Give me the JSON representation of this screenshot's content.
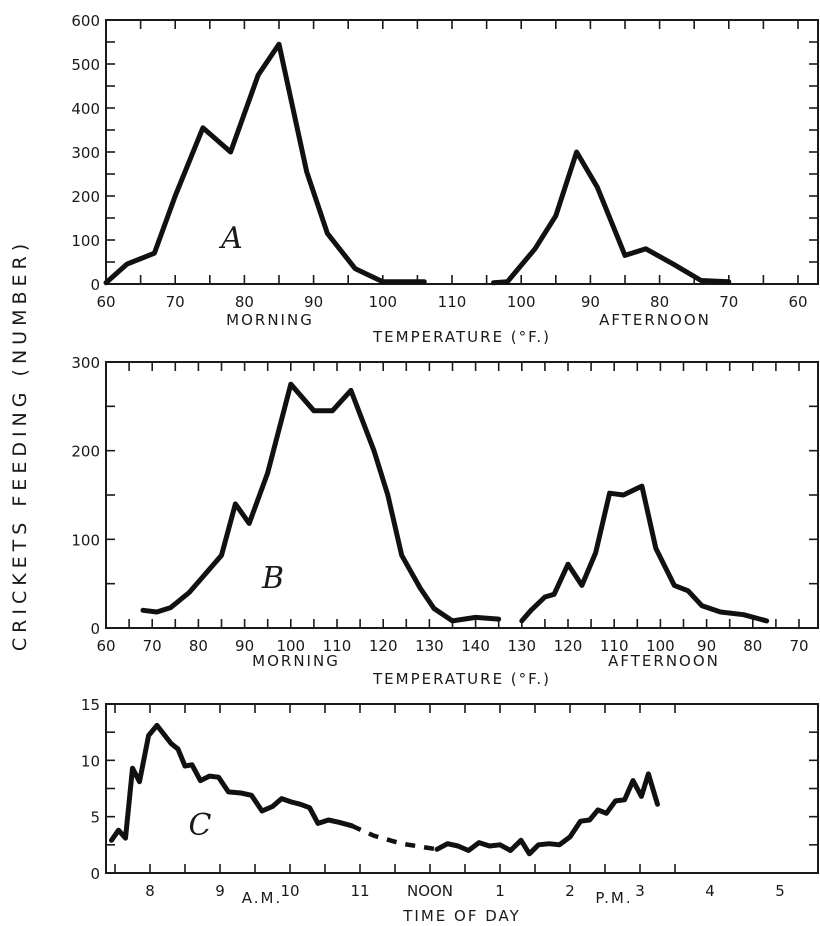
{
  "y_axis_label": "CRICKETS FEEDING (NUMBER)",
  "chart_data": [
    {
      "type": "line",
      "panel": "A",
      "ylim": [
        0,
        600
      ],
      "yticks": [
        0,
        100,
        200,
        300,
        400,
        500,
        600
      ],
      "x_tick_labels": [
        "60",
        "70",
        "80",
        "90",
        "100",
        "110",
        "100",
        "90",
        "80",
        "70",
        "60"
      ],
      "x_captions": {
        "left": "MORNING",
        "right": "AFTERNOON"
      },
      "xlabel": "TEMPERATURE (°F.)",
      "x_scale": "temperature rises to 110 at the centre and falls back to 60 on the right",
      "series": [
        {
          "part": "morning",
          "points": [
            [
              60,
              3
            ],
            [
              63,
              45
            ],
            [
              67,
              70
            ],
            [
              70,
              200
            ],
            [
              74,
              355
            ],
            [
              78,
              300
            ],
            [
              82,
              475
            ],
            [
              85,
              545
            ],
            [
              89,
              255
            ],
            [
              92,
              115
            ],
            [
              96,
              35
            ],
            [
              100,
              5
            ],
            [
              106,
              5
            ]
          ]
        },
        {
          "part": "afternoon",
          "points": [
            [
              104,
              3
            ],
            [
              102,
              5
            ],
            [
              98,
              80
            ],
            [
              95,
              155
            ],
            [
              92,
              300
            ],
            [
              89,
              220
            ],
            [
              85,
              65
            ],
            [
              82,
              80
            ],
            [
              78,
              45
            ],
            [
              74,
              8
            ],
            [
              70,
              5
            ]
          ]
        }
      ]
    },
    {
      "type": "line",
      "panel": "B",
      "ylim": [
        0,
        300
      ],
      "yticks": [
        0,
        100,
        200,
        300
      ],
      "x_tick_labels": [
        "60",
        "70",
        "80",
        "90",
        "100",
        "110",
        "120",
        "130",
        "140",
        "130",
        "120",
        "110",
        "100",
        "90",
        "80",
        "70"
      ],
      "x_captions": {
        "left": "MORNING",
        "right": "AFTERNOON"
      },
      "xlabel": "TEMPERATURE (°F.)",
      "x_scale": "temperature rises to 140 at the centre and falls back to 70 on the right",
      "series": [
        {
          "part": "morning",
          "points": [
            [
              68,
              20
            ],
            [
              71,
              18
            ],
            [
              74,
              23
            ],
            [
              78,
              40
            ],
            [
              81,
              58
            ],
            [
              85,
              82
            ],
            [
              88,
              140
            ],
            [
              91,
              118
            ],
            [
              95,
              175
            ],
            [
              100,
              275
            ],
            [
              105,
              245
            ],
            [
              109,
              245
            ],
            [
              113,
              268
            ],
            [
              118,
              200
            ],
            [
              121,
              150
            ],
            [
              124,
              82
            ],
            [
              128,
              45
            ],
            [
              131,
              22
            ],
            [
              135,
              8
            ],
            [
              140,
              12
            ],
            [
              145,
              10
            ]
          ]
        },
        {
          "part": "afternoon",
          "points": [
            [
              130,
              8
            ],
            [
              128,
              20
            ],
            [
              125,
              35
            ],
            [
              123,
              38
            ],
            [
              120,
              72
            ],
            [
              117,
              48
            ],
            [
              114,
              85
            ],
            [
              111,
              152
            ],
            [
              108,
              150
            ],
            [
              104,
              160
            ],
            [
              101,
              90
            ],
            [
              97,
              48
            ],
            [
              94,
              42
            ],
            [
              91,
              25
            ],
            [
              87,
              18
            ],
            [
              82,
              15
            ],
            [
              77,
              8
            ]
          ]
        }
      ]
    },
    {
      "type": "line",
      "panel": "C",
      "ylim": [
        0,
        15
      ],
      "yticks": [
        0,
        5,
        10,
        15
      ],
      "x_tick_labels": [
        "8",
        "9",
        "10",
        "11",
        "NOON",
        "1",
        "2",
        "3",
        "4",
        "5"
      ],
      "x_captions": {
        "left": "A.M.",
        "right": "P.M."
      },
      "xlabel": "TIME OF DAY",
      "series": [
        {
          "part": "morning",
          "style": "solid",
          "points": [
            [
              7.45,
              2.9
            ],
            [
              7.55,
              3.8
            ],
            [
              7.65,
              3.1
            ],
            [
              7.75,
              9.3
            ],
            [
              7.85,
              8.1
            ],
            [
              7.98,
              12.2
            ],
            [
              8.1,
              13.1
            ],
            [
              8.2,
              12.3
            ],
            [
              8.3,
              11.5
            ],
            [
              8.4,
              11
            ],
            [
              8.5,
              9.5
            ],
            [
              8.6,
              9.6
            ],
            [
              8.72,
              8.2
            ],
            [
              8.85,
              8.6
            ],
            [
              8.98,
              8.5
            ],
            [
              9.12,
              7.2
            ],
            [
              9.3,
              7.1
            ],
            [
              9.45,
              6.9
            ],
            [
              9.6,
              5.5
            ],
            [
              9.75,
              5.9
            ],
            [
              9.88,
              6.6
            ],
            [
              10.02,
              6.3
            ],
            [
              10.15,
              6.1
            ],
            [
              10.28,
              5.8
            ],
            [
              10.4,
              4.4
            ],
            [
              10.55,
              4.7
            ],
            [
              10.7,
              4.5
            ],
            [
              10.88,
              4.2
            ]
          ]
        },
        {
          "part": "midday",
          "style": "dashed",
          "points": [
            [
              10.88,
              4.2
            ],
            [
              11.2,
              3.3
            ],
            [
              11.6,
              2.6
            ],
            [
              12.1,
              2.1
            ]
          ]
        },
        {
          "part": "afternoon",
          "style": "solid",
          "points": [
            [
              12.1,
              2.1
            ],
            [
              12.25,
              2.6
            ],
            [
              12.4,
              2.4
            ],
            [
              12.55,
              2.0
            ],
            [
              12.7,
              2.7
            ],
            [
              12.85,
              2.4
            ],
            [
              13.0,
              2.5
            ],
            [
              13.15,
              2.0
            ],
            [
              13.3,
              2.9
            ],
            [
              13.42,
              1.7
            ],
            [
              13.55,
              2.5
            ],
            [
              13.7,
              2.6
            ],
            [
              13.85,
              2.5
            ],
            [
              14.0,
              3.2
            ],
            [
              14.15,
              4.6
            ],
            [
              14.28,
              4.7
            ],
            [
              14.4,
              5.6
            ],
            [
              14.52,
              5.3
            ],
            [
              14.65,
              6.4
            ],
            [
              14.78,
              6.5
            ],
            [
              14.9,
              8.2
            ],
            [
              15.02,
              6.8
            ],
            [
              15.12,
              8.8
            ],
            [
              15.25,
              6.1
            ]
          ]
        }
      ]
    }
  ]
}
